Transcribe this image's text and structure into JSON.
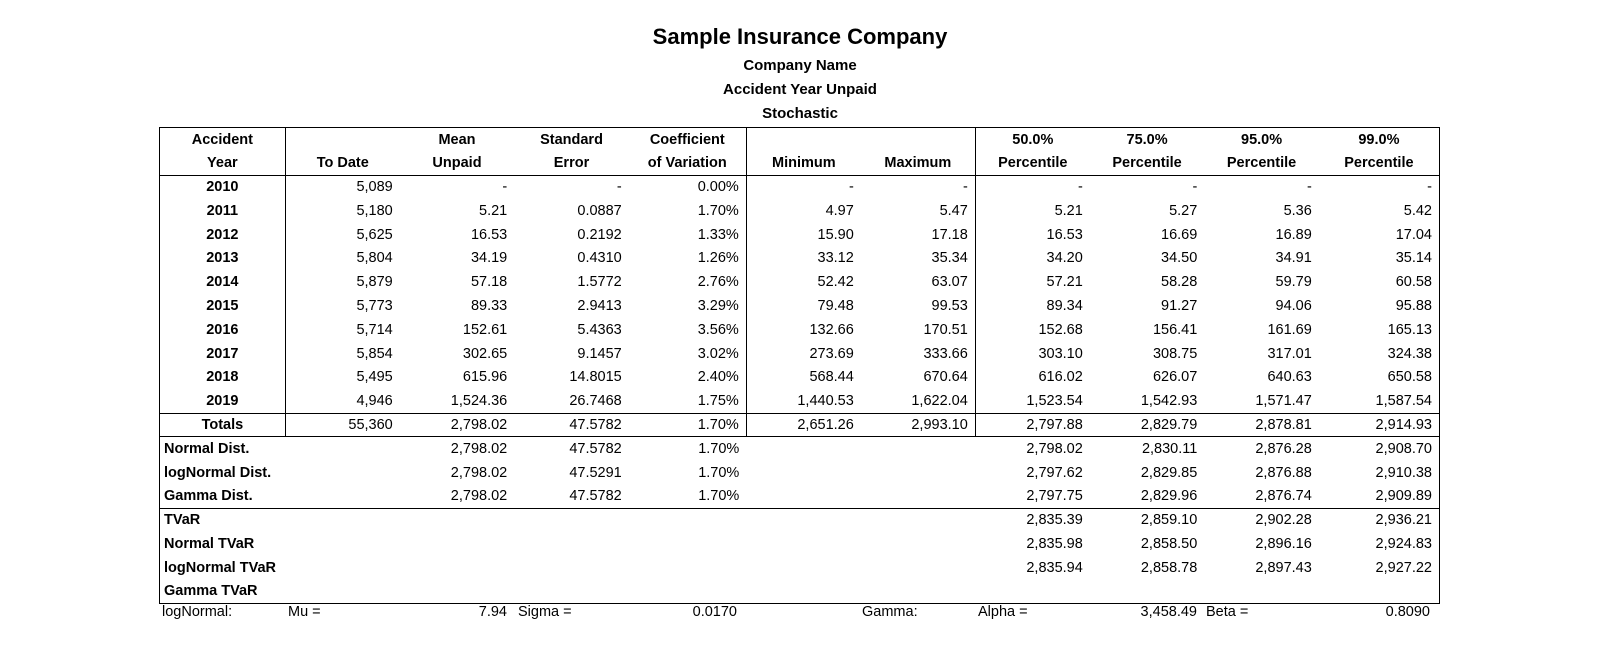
{
  "header": {
    "title": "Sample Insurance Company",
    "company": "Company Name",
    "report": "Accident Year Unpaid",
    "method": "Stochastic"
  },
  "columns": [
    [
      "Accident",
      "Year"
    ],
    [
      "",
      "To Date"
    ],
    [
      "Mean",
      "Unpaid"
    ],
    [
      "Standard",
      "Error"
    ],
    [
      "Coefficient",
      "of Variation"
    ],
    [
      "",
      "Minimum"
    ],
    [
      "",
      "Maximum"
    ],
    [
      "50.0%",
      "Percentile"
    ],
    [
      "75.0%",
      "Percentile"
    ],
    [
      "95.0%",
      "Percentile"
    ],
    [
      "99.0%",
      "Percentile"
    ]
  ],
  "rows": [
    [
      "2010",
      "5,089",
      "-",
      "-",
      "0.00%",
      "-",
      "-",
      "-",
      "-",
      "-",
      "-"
    ],
    [
      "2011",
      "5,180",
      "5.21",
      "0.0887",
      "1.70%",
      "4.97",
      "5.47",
      "5.21",
      "5.27",
      "5.36",
      "5.42"
    ],
    [
      "2012",
      "5,625",
      "16.53",
      "0.2192",
      "1.33%",
      "15.90",
      "17.18",
      "16.53",
      "16.69",
      "16.89",
      "17.04"
    ],
    [
      "2013",
      "5,804",
      "34.19",
      "0.4310",
      "1.26%",
      "33.12",
      "35.34",
      "34.20",
      "34.50",
      "34.91",
      "35.14"
    ],
    [
      "2014",
      "5,879",
      "57.18",
      "1.5772",
      "2.76%",
      "52.42",
      "63.07",
      "57.21",
      "58.28",
      "59.79",
      "60.58"
    ],
    [
      "2015",
      "5,773",
      "89.33",
      "2.9413",
      "3.29%",
      "79.48",
      "99.53",
      "89.34",
      "91.27",
      "94.06",
      "95.88"
    ],
    [
      "2016",
      "5,714",
      "152.61",
      "5.4363",
      "3.56%",
      "132.66",
      "170.51",
      "152.68",
      "156.41",
      "161.69",
      "165.13"
    ],
    [
      "2017",
      "5,854",
      "302.65",
      "9.1457",
      "3.02%",
      "273.69",
      "333.66",
      "303.10",
      "308.75",
      "317.01",
      "324.38"
    ],
    [
      "2018",
      "5,495",
      "615.96",
      "14.8015",
      "2.40%",
      "568.44",
      "670.64",
      "616.02",
      "626.07",
      "640.63",
      "650.58"
    ],
    [
      "2019",
      "4,946",
      "1,524.36",
      "26.7468",
      "1.75%",
      "1,440.53",
      "1,622.04",
      "1,523.54",
      "1,542.93",
      "1,571.47",
      "1,587.54"
    ]
  ],
  "totals": [
    "Totals",
    "55,360",
    "2,798.02",
    "47.5782",
    "1.70%",
    "2,651.26",
    "2,993.10",
    "2,797.88",
    "2,829.79",
    "2,878.81",
    "2,914.93"
  ],
  "distributions": [
    [
      "Normal Dist.",
      "2,798.02",
      "47.5782",
      "1.70%",
      "2,798.02",
      "2,830.11",
      "2,876.28",
      "2,908.70"
    ],
    [
      "logNormal Dist.",
      "2,798.02",
      "47.5291",
      "1.70%",
      "2,797.62",
      "2,829.85",
      "2,876.88",
      "2,910.38"
    ],
    [
      "Gamma Dist.",
      "2,798.02",
      "47.5782",
      "1.70%",
      "2,797.75",
      "2,829.96",
      "2,876.74",
      "2,909.89"
    ]
  ],
  "tvar": [
    [
      "TVaR",
      "2,835.39",
      "2,859.10",
      "2,902.28",
      "2,936.21"
    ],
    [
      "Normal TVaR",
      "2,835.98",
      "2,858.50",
      "2,896.16",
      "2,924.83"
    ],
    [
      "logNormal TVaR",
      "2,835.94",
      "2,858.78",
      "2,897.43",
      "2,927.22"
    ],
    [
      "Gamma TVaR",
      "",
      "",
      "",
      ""
    ]
  ],
  "footer": {
    "lognormal_label": "logNormal:",
    "mu_label": "Mu =",
    "mu_value": "7.94",
    "sigma_label": "Sigma =",
    "sigma_value": "0.0170",
    "gamma_label": "Gamma:",
    "alpha_label": "Alpha =",
    "alpha_value": "3,458.49",
    "beta_label": "Beta =",
    "beta_value": "0.8090"
  }
}
